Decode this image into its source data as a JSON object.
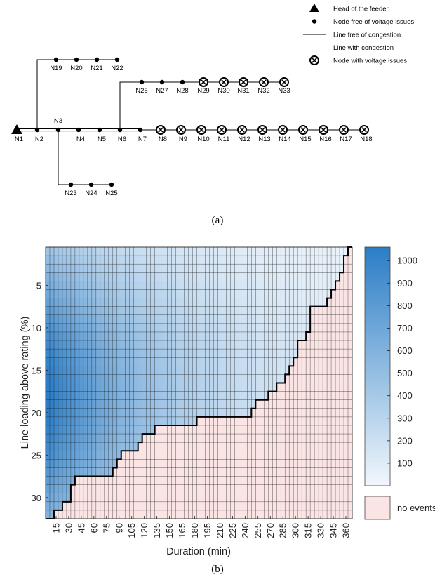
{
  "panel_a": {
    "caption": "(a)",
    "legend": [
      {
        "symbol": "triangle",
        "label": "Head of the feeder"
      },
      {
        "symbol": "dot",
        "label": "Node free of voltage issues"
      },
      {
        "symbol": "thin-line",
        "label": "Line free of congestion"
      },
      {
        "symbol": "double-line",
        "label": "Line with congestion"
      },
      {
        "symbol": "x-circle",
        "label": "Node with voltage issues"
      }
    ],
    "main_feeder": [
      {
        "id": "N1",
        "type": "head"
      },
      {
        "id": "N2",
        "type": "ok"
      },
      {
        "id": "N3",
        "type": "ok"
      },
      {
        "id": "N4",
        "type": "ok"
      },
      {
        "id": "N5",
        "type": "ok"
      },
      {
        "id": "N6",
        "type": "ok"
      },
      {
        "id": "N7",
        "type": "ok"
      },
      {
        "id": "N8",
        "type": "issue"
      },
      {
        "id": "N9",
        "type": "issue"
      },
      {
        "id": "N10",
        "type": "issue"
      },
      {
        "id": "N11",
        "type": "issue"
      },
      {
        "id": "N12",
        "type": "issue"
      },
      {
        "id": "N13",
        "type": "issue"
      },
      {
        "id": "N14",
        "type": "issue"
      },
      {
        "id": "N15",
        "type": "issue"
      },
      {
        "id": "N16",
        "type": "issue"
      },
      {
        "id": "N17",
        "type": "issue"
      },
      {
        "id": "N18",
        "type": "issue"
      }
    ],
    "branch_from_N2": [
      {
        "id": "N19",
        "type": "ok"
      },
      {
        "id": "N20",
        "type": "ok"
      },
      {
        "id": "N21",
        "type": "ok"
      },
      {
        "id": "N22",
        "type": "ok"
      }
    ],
    "branch_from_N6": [
      {
        "id": "N26",
        "type": "ok"
      },
      {
        "id": "N27",
        "type": "ok"
      },
      {
        "id": "N28",
        "type": "ok"
      },
      {
        "id": "N29",
        "type": "issue"
      },
      {
        "id": "N30",
        "type": "issue"
      },
      {
        "id": "N31",
        "type": "issue"
      },
      {
        "id": "N32",
        "type": "issue"
      },
      {
        "id": "N33",
        "type": "issue"
      }
    ],
    "branch_from_N3": [
      {
        "id": "N23",
        "type": "ok"
      },
      {
        "id": "N24",
        "type": "ok"
      },
      {
        "id": "N25",
        "type": "ok"
      }
    ],
    "congested_lines": "N1-N7"
  },
  "panel_b": {
    "caption": "(b)",
    "chart_data": {
      "type": "heatmap",
      "xlabel": "Duration (min)",
      "ylabel": "Line loading above rating (%)",
      "x_ticks": [
        "15",
        "30",
        "45",
        "60",
        "75",
        "90",
        "105",
        "120",
        "135",
        "150",
        "165",
        "180",
        "195",
        "210",
        "225",
        "240",
        "255",
        "270",
        "285",
        "300",
        "315",
        "330",
        "345",
        "360"
      ],
      "y_ticks": [
        "5",
        "10",
        "15",
        "20",
        "25",
        "30"
      ],
      "x_range": [
        5,
        365
      ],
      "y_range": [
        1,
        32
      ],
      "x_step": 5,
      "y_step": 1,
      "colorbar_ticks": [
        "100",
        "200",
        "300",
        "400",
        "500",
        "600",
        "700",
        "800",
        "900",
        "1000"
      ],
      "colorbar_range": [
        0,
        1060
      ],
      "colors": {
        "low": "#f2f7fc",
        "high": "#2b7dc6",
        "no_events": "#fbe4e4",
        "grid": "#1a1a1a"
      },
      "no_events_label": "no events",
      "boundary_max_loading_by_duration": [
        {
          "duration_from": 5,
          "duration_to": 10,
          "max_loading": 32
        },
        {
          "duration_from": 15,
          "duration_to": 20,
          "max_loading": 31
        },
        {
          "duration_from": 25,
          "duration_to": 30,
          "max_loading": 30
        },
        {
          "duration_from": 35,
          "duration_to": 35,
          "max_loading": 28
        },
        {
          "duration_from": 40,
          "duration_to": 80,
          "max_loading": 27
        },
        {
          "duration_from": 85,
          "duration_to": 85,
          "max_loading": 26
        },
        {
          "duration_from": 90,
          "duration_to": 90,
          "max_loading": 25
        },
        {
          "duration_from": 95,
          "duration_to": 110,
          "max_loading": 24
        },
        {
          "duration_from": 115,
          "duration_to": 115,
          "max_loading": 23
        },
        {
          "duration_from": 120,
          "duration_to": 130,
          "max_loading": 22
        },
        {
          "duration_from": 135,
          "duration_to": 180,
          "max_loading": 21
        },
        {
          "duration_from": 185,
          "duration_to": 245,
          "max_loading": 20
        },
        {
          "duration_from": 250,
          "duration_to": 250,
          "max_loading": 19
        },
        {
          "duration_from": 255,
          "duration_to": 265,
          "max_loading": 18
        },
        {
          "duration_from": 270,
          "duration_to": 275,
          "max_loading": 17
        },
        {
          "duration_from": 280,
          "duration_to": 285,
          "max_loading": 16
        },
        {
          "duration_from": 290,
          "duration_to": 290,
          "max_loading": 15
        },
        {
          "duration_from": 295,
          "duration_to": 295,
          "max_loading": 14
        },
        {
          "duration_from": 300,
          "duration_to": 300,
          "max_loading": 13
        },
        {
          "duration_from": 305,
          "duration_to": 310,
          "max_loading": 11
        },
        {
          "duration_from": 315,
          "duration_to": 315,
          "max_loading": 10
        },
        {
          "duration_from": 320,
          "duration_to": 335,
          "max_loading": 7
        },
        {
          "duration_from": 340,
          "duration_to": 340,
          "max_loading": 6
        },
        {
          "duration_from": 345,
          "duration_to": 345,
          "max_loading": 5
        },
        {
          "duration_from": 350,
          "duration_to": 350,
          "max_loading": 4
        },
        {
          "duration_from": 355,
          "duration_to": 355,
          "max_loading": 3
        },
        {
          "duration_from": 360,
          "duration_to": 360,
          "max_loading": 1
        }
      ],
      "peak_value": {
        "duration": 5,
        "loading": 18,
        "value": 1060
      }
    }
  }
}
